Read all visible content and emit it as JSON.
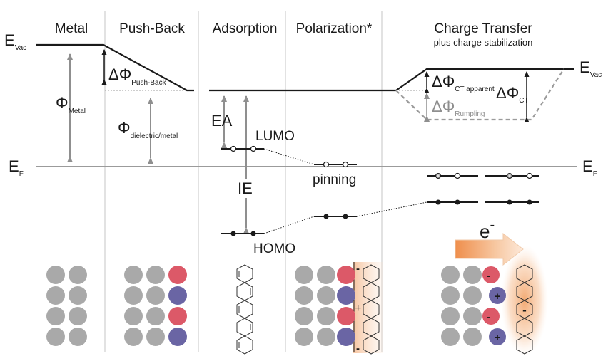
{
  "headers": {
    "metal": "Metal",
    "push_back": "Push-Back",
    "adsorption": "Adsorption",
    "polarization": "Polarization*",
    "charge_transfer": "Charge Transfer",
    "charge_transfer_sub": "plus charge stabilization"
  },
  "labels": {
    "evac_left_main": "E",
    "evac_left_sub": "Vac",
    "evac_right_main": "E",
    "evac_right_sub": "Vac",
    "ef_left_main": "E",
    "ef_left_sub": "F",
    "ef_right_main": "E",
    "ef_right_sub": "F",
    "phi_metal_main": "Φ",
    "phi_metal_sub": "Metal",
    "dphi_pushback_main": "ΔΦ",
    "dphi_pushback_sub": "Push-Back",
    "phi_dielectric_main": "Φ",
    "phi_dielectric_sub": "dielectric/metal",
    "ea": "EA",
    "lumo": "LUMO",
    "ie": "IE",
    "homo": "HOMO",
    "pinning": "pinning",
    "dphi_ct_app_main": "ΔΦ",
    "dphi_ct_app_sub": "CT apparent",
    "dphi_rumpling_main": "ΔΦ",
    "dphi_rumpling_sub": "Rumpling",
    "dphi_ct_main": "ΔΦ",
    "dphi_ct_sub": "CT",
    "electron_main": "e",
    "electron_sup": "-",
    "plus": "+",
    "minus": "-"
  },
  "colors": {
    "metal_atom": "#a9a9a9",
    "positive_atom": "#dc5968",
    "negative_atom": "#6a65a4",
    "line_dark": "#1a1a1a",
    "line_grey": "#9b9b9b",
    "arrow_grey": "#8f8f8f",
    "glow_orange": "#f2a56b"
  }
}
